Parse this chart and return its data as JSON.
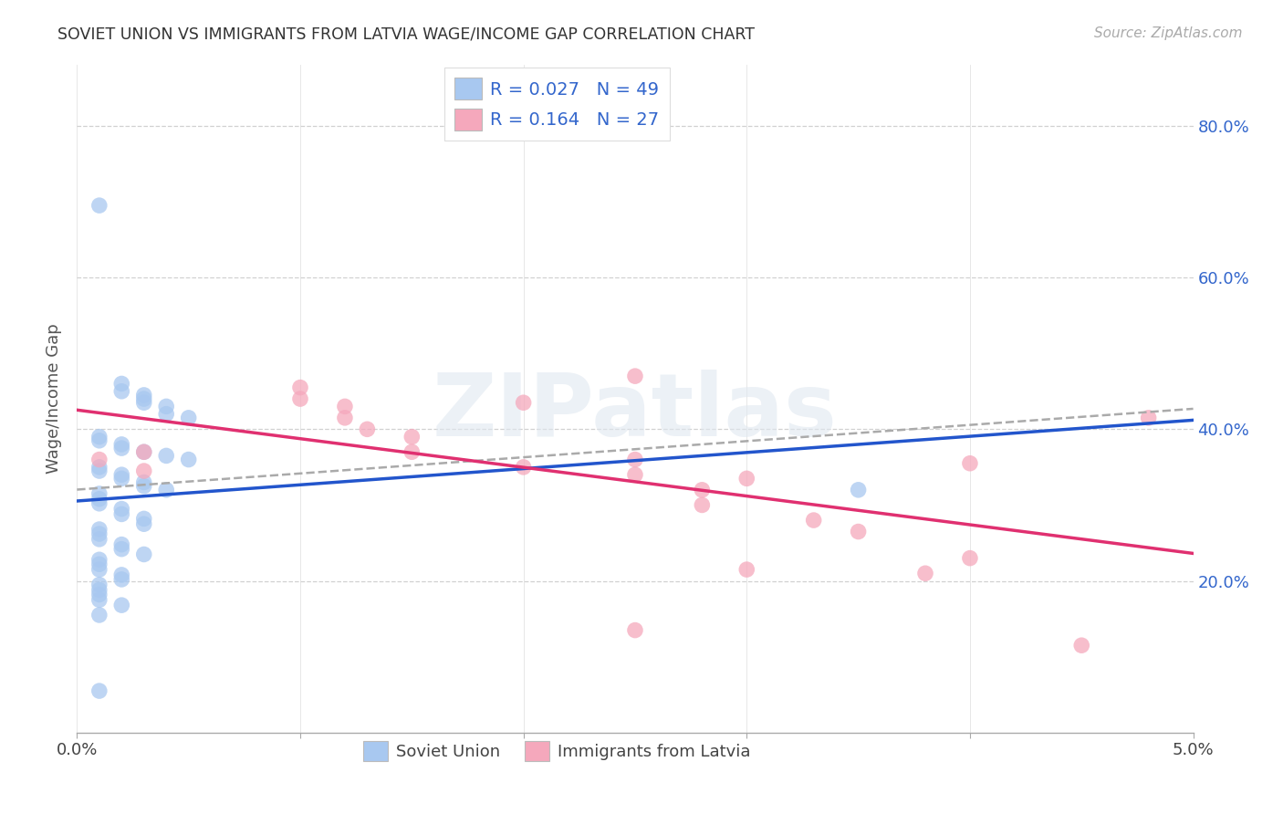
{
  "title": "SOVIET UNION VS IMMIGRANTS FROM LATVIA WAGE/INCOME GAP CORRELATION CHART",
  "source": "Source: ZipAtlas.com",
  "ylabel": "Wage/Income Gap",
  "legend_label1": "R = 0.027   N = 49",
  "legend_label2": "R = 0.164   N = 27",
  "legend_bottom1": "Soviet Union",
  "legend_bottom2": "Immigrants from Latvia",
  "blue_color": "#A8C8F0",
  "pink_color": "#F5A8BC",
  "blue_line_color": "#2255CC",
  "pink_line_color": "#E03070",
  "dashed_line_color": "#AAAAAA",
  "r_blue": 0.027,
  "n_blue": 49,
  "r_pink": 0.164,
  "n_pink": 27,
  "xlim": [
    0.0,
    0.05
  ],
  "ylim": [
    0.0,
    0.88
  ],
  "xtick_positions": [
    0.0,
    0.01,
    0.02,
    0.03,
    0.04,
    0.05
  ],
  "xtick_labels": [
    "0.0%",
    "",
    "",
    "",
    "",
    "5.0%"
  ],
  "ytick_positions": [
    0.2,
    0.4,
    0.6,
    0.8
  ],
  "ytick_labels": [
    "20.0%",
    "40.0%",
    "60.0%",
    "80.0%"
  ],
  "watermark_text": "ZIPatlas",
  "blue_x": [
    0.001,
    0.002,
    0.002,
    0.003,
    0.003,
    0.003,
    0.004,
    0.004,
    0.005,
    0.001,
    0.001,
    0.002,
    0.002,
    0.003,
    0.004,
    0.005,
    0.001,
    0.001,
    0.002,
    0.002,
    0.003,
    0.003,
    0.004,
    0.001,
    0.001,
    0.001,
    0.002,
    0.002,
    0.003,
    0.003,
    0.001,
    0.001,
    0.001,
    0.002,
    0.002,
    0.003,
    0.001,
    0.001,
    0.001,
    0.002,
    0.002,
    0.001,
    0.001,
    0.001,
    0.001,
    0.002,
    0.001,
    0.001,
    0.035
  ],
  "blue_y": [
    0.695,
    0.46,
    0.45,
    0.445,
    0.44,
    0.435,
    0.43,
    0.42,
    0.415,
    0.39,
    0.385,
    0.38,
    0.375,
    0.37,
    0.365,
    0.36,
    0.35,
    0.345,
    0.34,
    0.335,
    0.33,
    0.325,
    0.32,
    0.315,
    0.308,
    0.302,
    0.295,
    0.288,
    0.282,
    0.275,
    0.268,
    0.262,
    0.255,
    0.248,
    0.242,
    0.235,
    0.228,
    0.222,
    0.215,
    0.208,
    0.202,
    0.195,
    0.188,
    0.182,
    0.175,
    0.168,
    0.155,
    0.055,
    0.32
  ],
  "pink_x": [
    0.001,
    0.003,
    0.003,
    0.01,
    0.01,
    0.012,
    0.012,
    0.013,
    0.015,
    0.015,
    0.02,
    0.02,
    0.025,
    0.025,
    0.028,
    0.028,
    0.03,
    0.033,
    0.035,
    0.04,
    0.04,
    0.025,
    0.03,
    0.038,
    0.048,
    0.025,
    0.045
  ],
  "pink_y": [
    0.36,
    0.37,
    0.345,
    0.455,
    0.44,
    0.43,
    0.415,
    0.4,
    0.39,
    0.37,
    0.435,
    0.35,
    0.36,
    0.34,
    0.32,
    0.3,
    0.335,
    0.28,
    0.265,
    0.355,
    0.23,
    0.47,
    0.215,
    0.21,
    0.415,
    0.135,
    0.115
  ]
}
